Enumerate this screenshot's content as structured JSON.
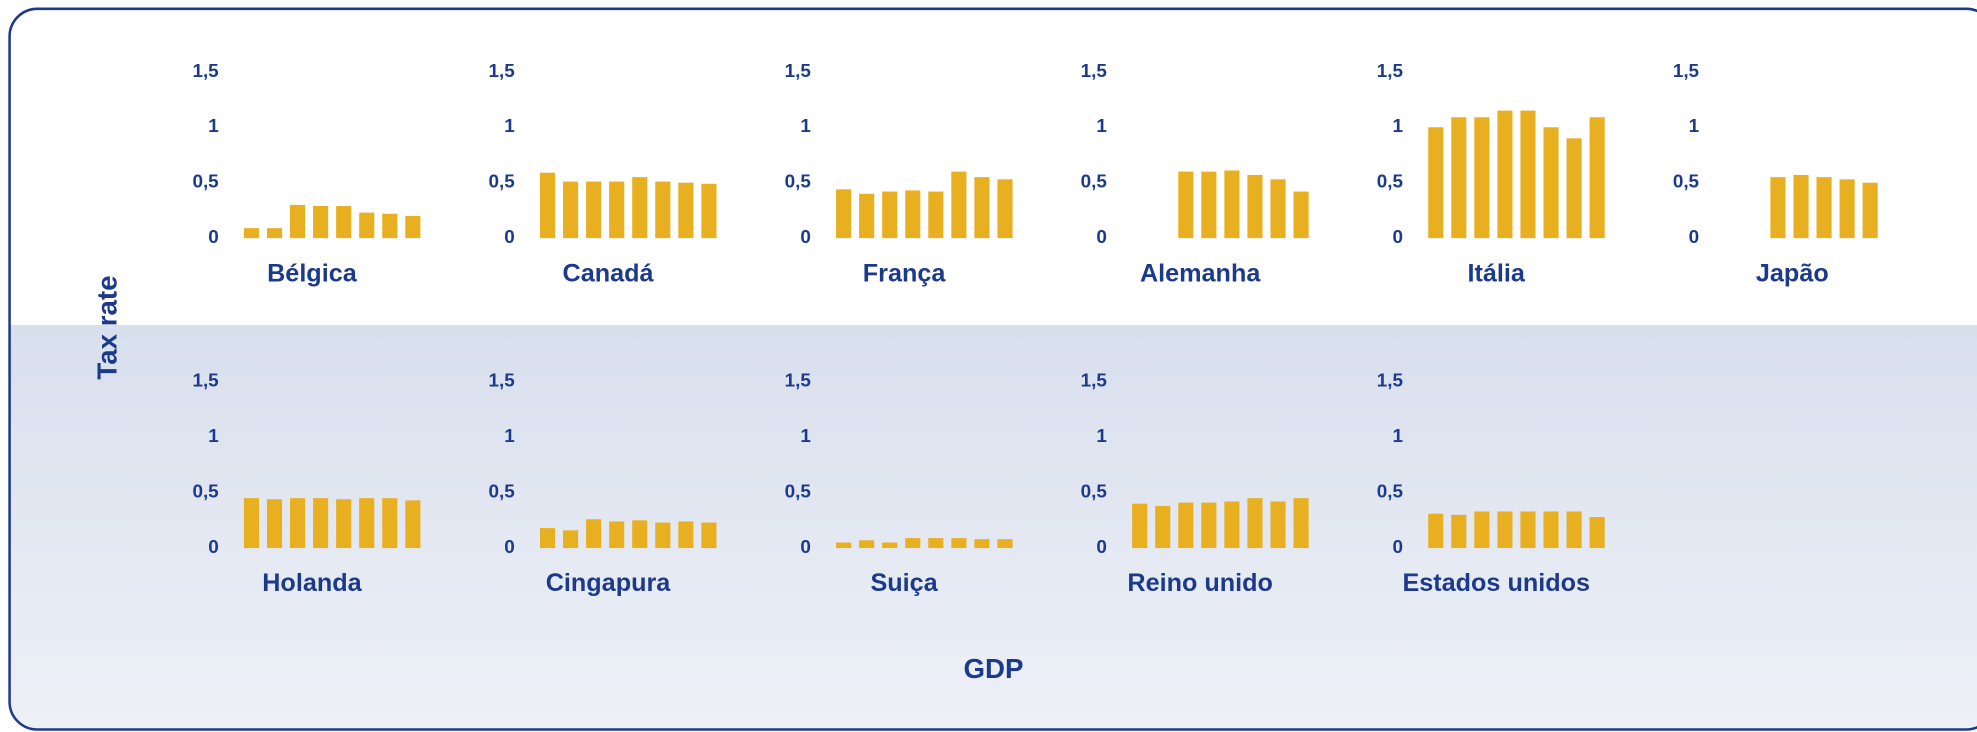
{
  "x_label": "GDP",
  "y_label": "Tax rate",
  "chart_data": [
    {
      "type": "bar",
      "title": "Bélgica",
      "values": [
        0.09,
        0.09,
        0.3,
        0.29,
        0.29,
        0.23,
        0.22,
        0.2
      ],
      "color": "#e8b020",
      "ylim": [
        0,
        1.5
      ],
      "yticks": [
        0,
        {
          "value": 0.5,
          "label": "0,5"
        },
        1,
        {
          "value": 1.5,
          "label": "1,5"
        }
      ]
    },
    {
      "type": "bar",
      "title": "Canadá",
      "values": [
        0.59,
        0.51,
        0.51,
        0.51,
        0.55,
        0.51,
        0.5,
        0.49
      ],
      "color": "#e8b020",
      "ylim": [
        0,
        1.5
      ],
      "yticks": [
        0,
        {
          "value": 0.5,
          "label": "0,5"
        },
        1,
        {
          "value": 1.5,
          "label": "1,5"
        }
      ]
    },
    {
      "type": "bar",
      "title": "França",
      "values": [
        0.44,
        0.4,
        0.42,
        0.43,
        0.42,
        0.6,
        0.55,
        0.53
      ],
      "color": "#e8b020",
      "ylim": [
        0,
        1.5
      ],
      "yticks": [
        0,
        {
          "value": 0.5,
          "label": "0,5"
        },
        1,
        {
          "value": 1.5,
          "label": "1,5"
        }
      ]
    },
    {
      "type": "bar",
      "title": "Alemanha",
      "values": [
        null,
        null,
        0.6,
        0.6,
        0.61,
        0.57,
        0.53,
        0.42
      ],
      "color": "#e8b020",
      "ylim": [
        0,
        1.5
      ],
      "yticks": [
        0,
        {
          "value": 0.5,
          "label": "0,5"
        },
        1,
        {
          "value": 1.5,
          "label": "1,5"
        }
      ]
    },
    {
      "type": "bar",
      "title": "Itália",
      "values": [
        1.0,
        1.09,
        1.09,
        1.15,
        1.15,
        1.0,
        0.9,
        1.09
      ],
      "color": "#e8b020",
      "ylim": [
        0,
        1.5
      ],
      "yticks": [
        0,
        {
          "value": 0.5,
          "label": "0,5"
        },
        1,
        {
          "value": 1.5,
          "label": "1,5"
        }
      ]
    },
    {
      "type": "bar",
      "title": "Japão",
      "values": [
        null,
        null,
        0.55,
        0.57,
        0.55,
        0.53,
        0.5,
        null
      ],
      "color": "#e8b020",
      "ylim": [
        0,
        1.5
      ],
      "yticks": [
        0,
        {
          "value": 0.5,
          "label": "0,5"
        },
        1,
        {
          "value": 1.5,
          "label": "1,5"
        }
      ]
    },
    {
      "type": "bar",
      "title": "Holanda",
      "values": [
        0.45,
        0.44,
        0.45,
        0.45,
        0.44,
        0.45,
        0.45,
        0.43
      ],
      "color": "#e8b020",
      "ylim": [
        0,
        1.5
      ],
      "yticks": [
        0,
        {
          "value": 0.5,
          "label": "0,5"
        },
        1,
        {
          "value": 1.5,
          "label": "1,5"
        }
      ]
    },
    {
      "type": "bar",
      "title": "Cingapura",
      "values": [
        0.18,
        0.16,
        0.26,
        0.24,
        0.25,
        0.23,
        0.24,
        0.23
      ],
      "color": "#e8b020",
      "ylim": [
        0,
        1.5
      ],
      "yticks": [
        0,
        {
          "value": 0.5,
          "label": "0,5"
        },
        1,
        {
          "value": 1.5,
          "label": "1,5"
        }
      ]
    },
    {
      "type": "bar",
      "title": "Suiça",
      "values": [
        0.05,
        0.07,
        0.05,
        0.09,
        0.09,
        0.09,
        0.08,
        0.08
      ],
      "color": "#e8b020",
      "ylim": [
        0,
        1.5
      ],
      "yticks": [
        0,
        {
          "value": 0.5,
          "label": "0,5"
        },
        1,
        {
          "value": 1.5,
          "label": "1,5"
        }
      ]
    },
    {
      "type": "bar",
      "title": "Reino unido",
      "values": [
        0.4,
        0.38,
        0.41,
        0.41,
        0.42,
        0.45,
        0.42,
        0.45
      ],
      "color": "#e8b020",
      "ylim": [
        0,
        1.5
      ],
      "yticks": [
        0,
        {
          "value": 0.5,
          "label": "0,5"
        },
        1,
        {
          "value": 1.5,
          "label": "1,5"
        }
      ]
    },
    {
      "type": "bar",
      "title": "Estados unidos",
      "values": [
        0.31,
        0.3,
        0.33,
        0.33,
        0.33,
        0.33,
        0.33,
        0.28
      ],
      "color": "#e8b020",
      "ylim": [
        0,
        1.5
      ],
      "yticks": [
        0,
        {
          "value": 0.5,
          "label": "0,5"
        },
        1,
        {
          "value": 1.5,
          "label": "1,5"
        }
      ]
    }
  ]
}
